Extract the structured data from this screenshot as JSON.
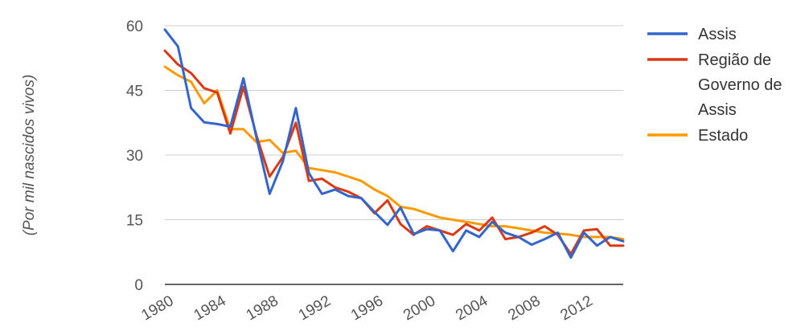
{
  "chart_data": {
    "type": "line",
    "ylabel": "(Por mil nascidos vivos)",
    "ylim": [
      0,
      60
    ],
    "yticks": [
      "0",
      "15",
      "30",
      "45",
      "60"
    ],
    "xlim": [
      1980,
      2015
    ],
    "xticks": [
      "1980",
      "1984",
      "1988",
      "1992",
      "1996",
      "2000",
      "2004",
      "2008",
      "2012"
    ],
    "grid": true,
    "legend": "right",
    "x": [
      1980,
      1981,
      1982,
      1983,
      1984,
      1985,
      1986,
      1987,
      1988,
      1989,
      1990,
      1991,
      1992,
      1993,
      1994,
      1995,
      1996,
      1997,
      1998,
      1999,
      2000,
      2001,
      2002,
      2003,
      2004,
      2005,
      2006,
      2007,
      2008,
      2009,
      2010,
      2011,
      2012,
      2013,
      2014,
      2015
    ],
    "series": [
      {
        "name": "Assis",
        "color": "#3366cc",
        "legend_lines": [
          "Assis"
        ],
        "values": [
          59.1,
          55.2,
          40.9,
          37.6,
          37.2,
          36.6,
          47.8,
          34.0,
          21.0,
          28.5,
          40.9,
          25.8,
          21.0,
          22.0,
          20.5,
          20.0,
          16.8,
          13.8,
          17.8,
          11.7,
          12.8,
          12.5,
          7.7,
          12.5,
          11.0,
          14.5,
          12.0,
          11.0,
          9.2,
          10.5,
          12.0,
          6.2,
          12.0,
          9.0,
          11.0,
          10.0
        ]
      },
      {
        "name": "Região de Governo de Assis",
        "color": "#dc3912",
        "legend_lines": [
          "Região de",
          "Governo de",
          "Assis"
        ],
        "values": [
          54.2,
          51.0,
          49.0,
          45.5,
          44.5,
          35.0,
          45.8,
          34.5,
          25.0,
          29.5,
          37.5,
          24.0,
          24.5,
          22.5,
          21.5,
          20.0,
          16.5,
          19.5,
          14.0,
          11.5,
          13.5,
          12.5,
          11.5,
          14.0,
          12.5,
          15.5,
          10.5,
          11.0,
          12.0,
          13.5,
          11.5,
          7.0,
          12.5,
          12.8,
          9.0,
          9.0
        ]
      },
      {
        "name": "Estado",
        "color": "#ff9900",
        "legend_lines": [
          "Estado"
        ],
        "values": [
          50.5,
          48.5,
          47.0,
          42.0,
          45.0,
          36.0,
          36.0,
          33.0,
          33.5,
          30.5,
          31.0,
          27.0,
          26.5,
          26.0,
          25.0,
          24.0,
          22.0,
          20.5,
          18.0,
          17.5,
          16.5,
          15.5,
          15.0,
          14.5,
          14.0,
          13.5,
          13.5,
          13.0,
          12.5,
          12.0,
          11.8,
          11.5,
          11.0,
          11.0,
          11.0,
          10.5
        ]
      }
    ]
  }
}
